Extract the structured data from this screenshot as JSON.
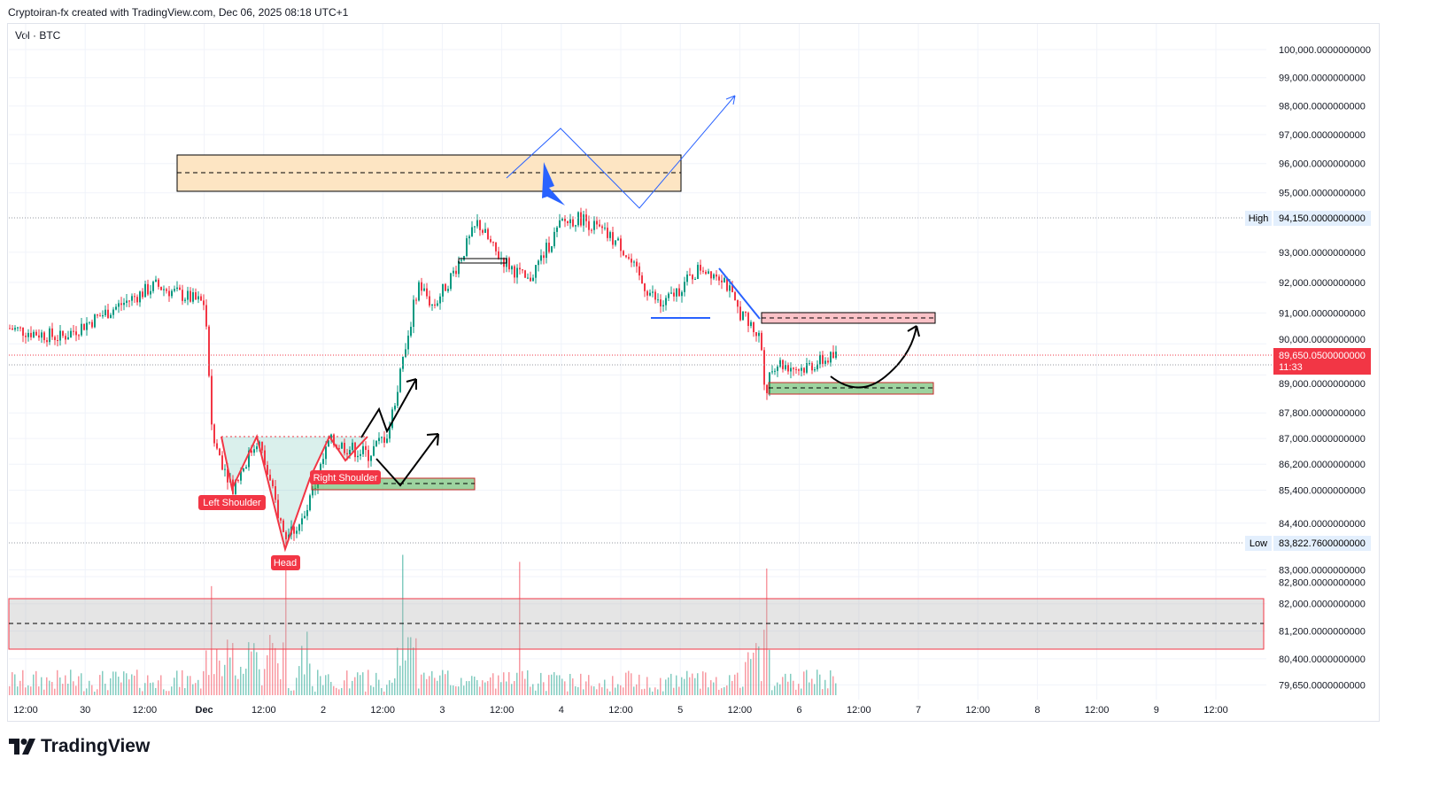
{
  "header": {
    "credit": "Cryptoiran-fx created with TradingView.com, Dec 06, 2025 08:18 UTC+1"
  },
  "legend": {
    "text": "Vol · BTC"
  },
  "brand": {
    "name": "TradingView",
    "icon": "tradingview-logo-icon"
  },
  "colors": {
    "up": "#089981",
    "down": "#f23645",
    "drawing_blue": "#2962ff",
    "zone_orange": "#fde5c3",
    "zone_red": "#f7c6cc",
    "zone_green": "#a5d6a7"
  },
  "chart_data": {
    "type": "candlestick",
    "title": "BTC",
    "scale": "log",
    "ylim": [
      79650,
      100000
    ],
    "y_ticks": [
      "100,000.0000000000",
      "99,000.0000000000",
      "98,000.0000000000",
      "97,000.0000000000",
      "96,000.0000000000",
      "95,000.0000000000",
      "93,000.0000000000",
      "92,000.0000000000",
      "91,000.0000000000",
      "90,000.0000000000",
      "89,000.0000000000",
      "87,800.0000000000",
      "87,000.0000000000",
      "86,200.0000000000",
      "85,400.0000000000",
      "84,400.0000000000",
      "83,000.0000000000",
      "82,800.0000000000",
      "82,000.0000000000",
      "81,200.0000000000",
      "80,400.0000000000",
      "79,650.0000000000"
    ],
    "y_tick_values": [
      100000,
      99000,
      98000,
      97000,
      96000,
      95000,
      93000,
      92000,
      91000,
      90000,
      89000,
      87800,
      87000,
      86200,
      85400,
      84400,
      83000,
      82800,
      82000,
      81200,
      80400,
      79650
    ],
    "x_ticks": [
      "12:00",
      "30",
      "12:00",
      "Dec",
      "12:00",
      "2",
      "12:00",
      "3",
      "12:00",
      "4",
      "12:00",
      "5",
      "12:00",
      "6",
      "12:00",
      "7",
      "12:00",
      "8",
      "12:00",
      "9",
      "12:00"
    ],
    "x_tick_hours": [
      0,
      12,
      24,
      36,
      48,
      60,
      72,
      84,
      96,
      108,
      120,
      132,
      144,
      156,
      168,
      180,
      192,
      204,
      216,
      228,
      240
    ],
    "price_path_hours": [
      -3.4,
      7,
      26,
      36,
      37.5,
      41.6,
      46.6,
      52,
      56,
      61,
      69,
      73,
      76,
      79,
      82,
      86,
      91,
      94.5,
      101,
      108,
      112,
      120,
      124,
      128,
      136,
      140.5,
      143,
      148,
      149,
      151,
      156,
      164
    ],
    "price_path_values": [
      90500,
      90200,
      91900,
      91300,
      87000,
      85500,
      87000,
      84000,
      84500,
      86900,
      86500,
      87200,
      89500,
      92000,
      91200,
      92300,
      94000,
      93000,
      92000,
      94000,
      94150,
      93200,
      92000,
      91200,
      92500,
      92200,
      91200,
      90200,
      88500,
      89400,
      89200,
      89650
    ],
    "high": {
      "label": "High",
      "value": "94,150.0000000000"
    },
    "low": {
      "label": "Low",
      "value": "83,822.7600000000"
    },
    "last": {
      "value": "89,650.0500000000",
      "countdown": "11:33"
    },
    "annotations": {
      "left_shoulder": "Left Shoulder",
      "head": "Head",
      "right_shoulder": "Right Shoulder"
    }
  }
}
